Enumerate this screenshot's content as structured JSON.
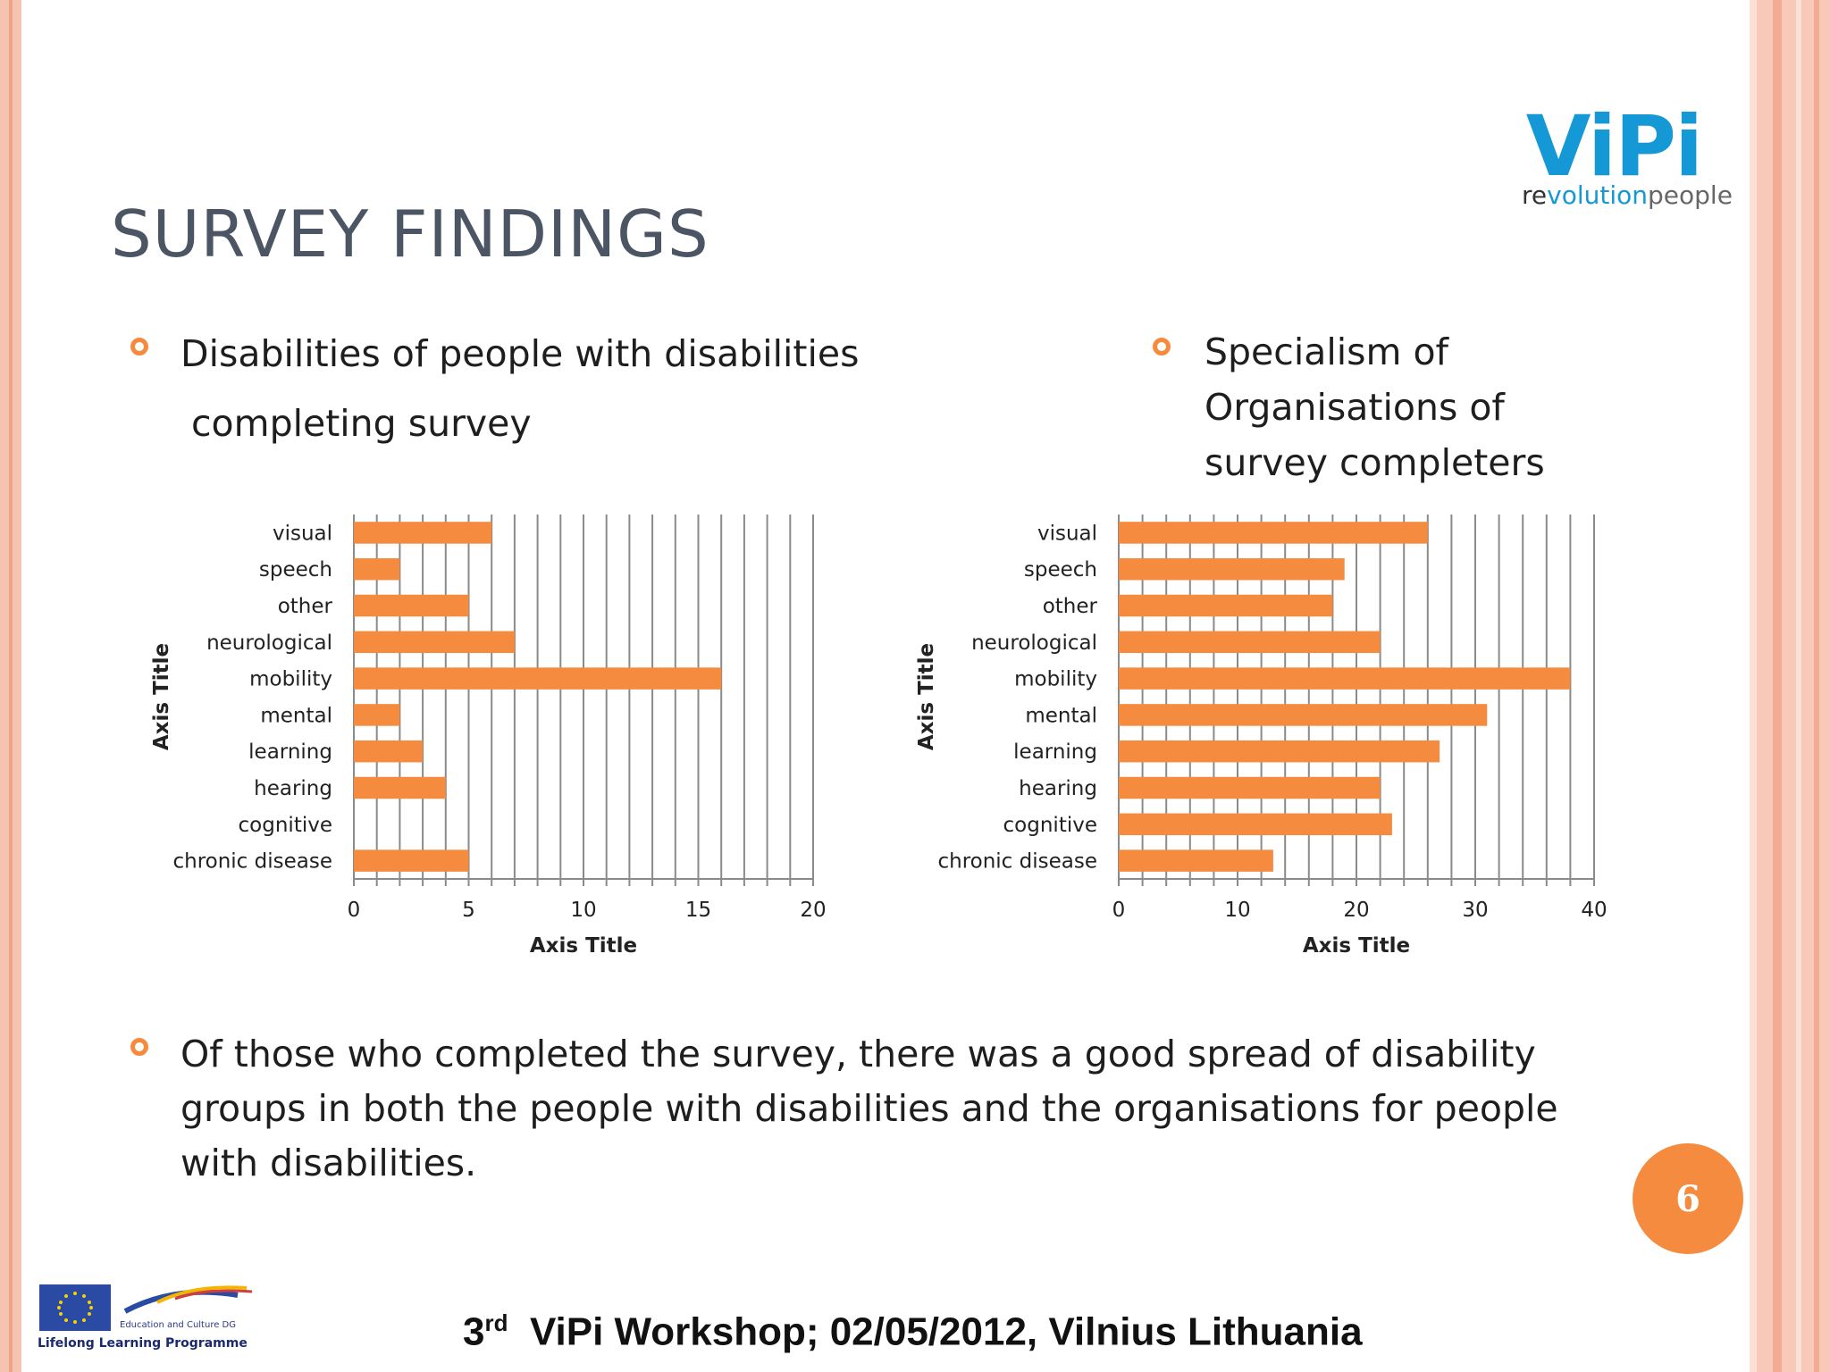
{
  "slide": {
    "title": "SURVEY FINDINGS",
    "page_number": "6",
    "footer": {
      "prefix": "3",
      "superscript": "rd",
      "text": "ViPi Workshop; 02/05/2012, Vilnius Lithuania"
    }
  },
  "bullets": {
    "left": [
      "Disabilities of people with disabilities",
      "completing survey"
    ],
    "right": [
      "Specialism of",
      "Organisations of",
      "survey completers"
    ],
    "bottom": [
      "Of those who completed the survey, there was a good spread of disability",
      "groups in both the people with disabilities and the organisations for people",
      "with disabilities."
    ]
  },
  "logo": {
    "main": "ViPi",
    "tag_prefix": "re",
    "tag_e": "e",
    "tag_mid": "volution",
    "tag_suffix": "people"
  },
  "eu_logo": {
    "dg_text": "Education and Culture DG",
    "programme": "Lifelong Learning Programme"
  },
  "colors": {
    "bar": "#f58b3f",
    "bullet": "#f58b3f",
    "title": "#4b5563",
    "grid": "#8a8a8a"
  },
  "chart_data": [
    {
      "type": "bar",
      "orientation": "horizontal",
      "categories": [
        "visual",
        "speech",
        "other",
        "neurological",
        "mobility",
        "mental",
        "learning",
        "hearing",
        "cognitive",
        "chronic disease"
      ],
      "values": [
        6,
        2,
        5,
        7,
        16,
        2,
        3,
        4,
        0,
        5
      ],
      "xlabel": "Axis Title",
      "ylabel": "Axis Title",
      "xlim": [
        0,
        20
      ],
      "xticks": [
        0,
        5,
        10,
        15,
        20
      ],
      "minor_step": 1,
      "grid": true
    },
    {
      "type": "bar",
      "orientation": "horizontal",
      "categories": [
        "visual",
        "speech",
        "other",
        "neurological",
        "mobility",
        "mental",
        "learning",
        "hearing",
        "cognitive",
        "chronic disease"
      ],
      "values": [
        26,
        19,
        18,
        22,
        38,
        31,
        27,
        22,
        23,
        13
      ],
      "xlabel": "Axis Title",
      "ylabel": "Axis Title",
      "xlim": [
        0,
        40
      ],
      "xticks": [
        0,
        10,
        20,
        30,
        40
      ],
      "minor_step": 2,
      "grid": true
    }
  ]
}
